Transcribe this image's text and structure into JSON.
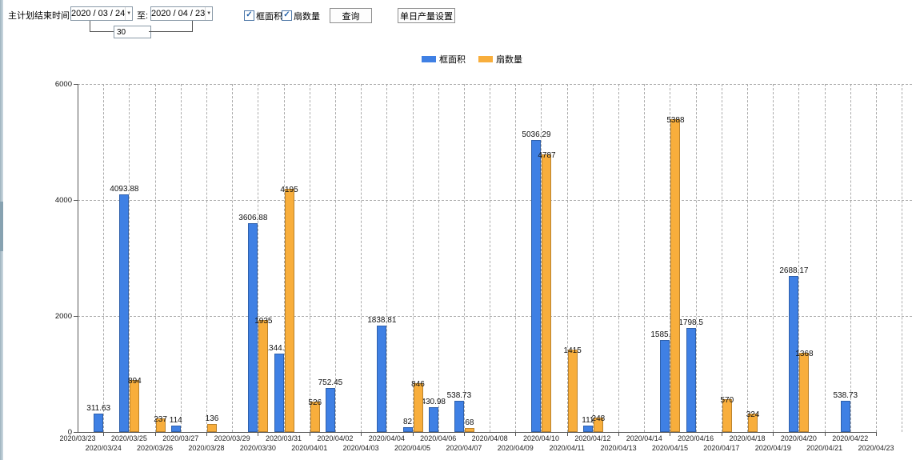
{
  "toolbar": {
    "end_time_label": "主计划结束时间:",
    "date_from": "2020 / 03 / 24",
    "to_label": "至:",
    "date_to": "2020 / 04 / 23",
    "days_value": "30",
    "checkbox_area_label": "框面积",
    "checkbox_fan_label": "扇数量",
    "query_button": "查询",
    "daily_output_button": "单日产量设置"
  },
  "legend": {
    "items": [
      {
        "label": "框面积",
        "color": "#3F80E4"
      },
      {
        "label": "扇数量",
        "color": "#F8AE3C"
      }
    ]
  },
  "chart_data": {
    "type": "bar",
    "title": "",
    "xlabel": "",
    "ylabel": "",
    "ylim": [
      0,
      6000
    ],
    "yticks": [
      0,
      2000,
      4000,
      6000
    ],
    "grid": "dashed",
    "legend_position": "top",
    "categories": [
      "2020/03/23",
      "2020/03/24",
      "2020/03/25",
      "2020/03/26",
      "2020/03/27",
      "2020/03/28",
      "2020/03/29",
      "2020/03/30",
      "2020/03/31",
      "2020/04/01",
      "2020/04/02",
      "2020/04/03",
      "2020/04/04",
      "2020/04/05",
      "2020/04/06",
      "2020/04/07",
      "2020/04/08",
      "2020/04/09",
      "2020/04/10",
      "2020/04/11",
      "2020/04/12",
      "2020/04/13",
      "2020/04/14",
      "2020/04/15",
      "2020/04/16",
      "2020/04/17",
      "2020/04/18",
      "2020/04/19",
      "2020/04/20",
      "2020/04/21",
      "2020/04/22",
      "2020/04/23"
    ],
    "series": [
      {
        "name": "框面积",
        "color": "#3F80E4",
        "values": [
          null,
          311.63,
          4093.88,
          null,
          114,
          null,
          null,
          3606.88,
          1344.95,
          null,
          752.45,
          null,
          1838.81,
          82,
          430.98,
          538.73,
          null,
          null,
          5036.29,
          null,
          111,
          null,
          null,
          1585.96,
          1798.5,
          null,
          null,
          null,
          2688.17,
          null,
          538.73,
          null
        ]
      },
      {
        "name": "扇数量",
        "color": "#F8AE3C",
        "values": [
          null,
          null,
          894,
          237,
          null,
          136,
          null,
          1935,
          4195,
          526,
          null,
          null,
          null,
          846,
          null,
          68,
          null,
          null,
          4787,
          1415,
          248,
          null,
          null,
          5388,
          null,
          570,
          324,
          null,
          1368,
          null,
          null,
          null
        ]
      }
    ]
  }
}
